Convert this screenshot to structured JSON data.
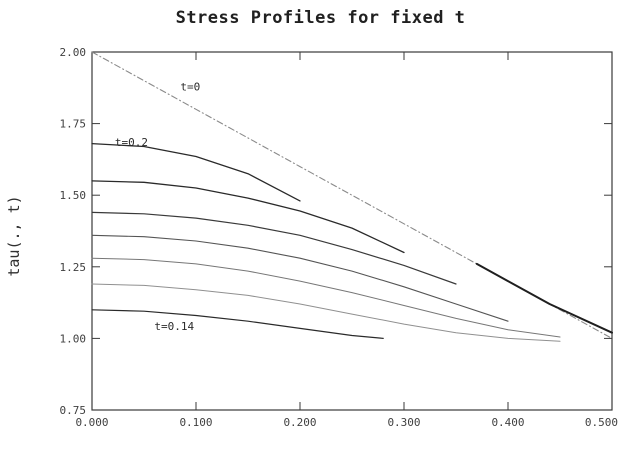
{
  "chart_data": {
    "type": "line",
    "title": "Stress Profiles for fixed t",
    "xlabel": "",
    "ylabel": "tau(., t)",
    "xlim": [
      0.0,
      0.5
    ],
    "ylim": [
      0.75,
      2.0
    ],
    "grid": false,
    "x_ticks": [
      {
        "value": 0.0,
        "label": "0.000"
      },
      {
        "value": 0.1,
        "label": "0.100"
      },
      {
        "value": 0.2,
        "label": "0.200"
      },
      {
        "value": 0.3,
        "label": "0.300"
      },
      {
        "value": 0.4,
        "label": "0.400"
      },
      {
        "value": 0.5,
        "label": "0.500"
      }
    ],
    "y_ticks": [
      {
        "value": 0.75,
        "label": "0.75"
      },
      {
        "value": 1.0,
        "label": "1.00"
      },
      {
        "value": 1.25,
        "label": "1.25"
      },
      {
        "value": 1.5,
        "label": "1.50"
      },
      {
        "value": 1.75,
        "label": "1.75"
      },
      {
        "value": 2.0,
        "label": "2.00"
      }
    ],
    "series": [
      {
        "name": "t=0",
        "color": "#8a8a8a",
        "width": 1.1,
        "dash": "6,3,1,3",
        "x": [
          0.0,
          0.1,
          0.2,
          0.3,
          0.4,
          0.5
        ],
        "y": [
          2.0,
          1.8,
          1.6,
          1.4,
          1.2,
          1.0
        ]
      },
      {
        "name": "t=0.2",
        "color": "#2a2a2a",
        "width": 1.3,
        "dash": "",
        "x": [
          0.0,
          0.05,
          0.1,
          0.15,
          0.2
        ],
        "y": [
          1.68,
          1.67,
          1.635,
          1.575,
          1.48
        ]
      },
      {
        "color": "#2a2a2a",
        "width": 1.3,
        "dash": "",
        "x": [
          0.0,
          0.05,
          0.1,
          0.15,
          0.2,
          0.25,
          0.3
        ],
        "y": [
          1.55,
          1.545,
          1.525,
          1.49,
          1.445,
          1.385,
          1.3
        ]
      },
      {
        "color": "#3a3a3a",
        "width": 1.2,
        "dash": "",
        "x": [
          0.0,
          0.05,
          0.1,
          0.15,
          0.2,
          0.25,
          0.3,
          0.35
        ],
        "y": [
          1.44,
          1.435,
          1.42,
          1.395,
          1.36,
          1.31,
          1.255,
          1.19
        ]
      },
      {
        "color": "#555555",
        "width": 1.1,
        "dash": "",
        "x": [
          0.0,
          0.05,
          0.1,
          0.15,
          0.2,
          0.25,
          0.3,
          0.35,
          0.4
        ],
        "y": [
          1.36,
          1.355,
          1.34,
          1.315,
          1.28,
          1.235,
          1.18,
          1.12,
          1.06
        ]
      },
      {
        "color": "#777777",
        "width": 1.0,
        "dash": "",
        "x": [
          0.0,
          0.05,
          0.1,
          0.15,
          0.2,
          0.25,
          0.3,
          0.35,
          0.4,
          0.45
        ],
        "y": [
          1.28,
          1.275,
          1.26,
          1.235,
          1.2,
          1.16,
          1.115,
          1.07,
          1.03,
          1.005
        ]
      },
      {
        "color": "#909090",
        "width": 1.0,
        "dash": "",
        "x": [
          0.0,
          0.05,
          0.1,
          0.15,
          0.2,
          0.25,
          0.3,
          0.35,
          0.4,
          0.45
        ],
        "y": [
          1.19,
          1.185,
          1.17,
          1.15,
          1.12,
          1.085,
          1.05,
          1.02,
          1.0,
          0.99
        ]
      },
      {
        "name": "t=0.14",
        "color": "#2a2a2a",
        "width": 1.2,
        "dash": "",
        "x": [
          0.0,
          0.05,
          0.1,
          0.15,
          0.2,
          0.25,
          0.28
        ],
        "y": [
          1.1,
          1.095,
          1.08,
          1.06,
          1.035,
          1.01,
          1.0
        ]
      },
      {
        "color": "#1f1f1f",
        "width": 2.0,
        "dash": "",
        "x": [
          0.37,
          0.4,
          0.44,
          0.5
        ],
        "y": [
          1.26,
          1.2,
          1.12,
          1.02
        ]
      }
    ],
    "annotations": [
      {
        "text": "t=0",
        "x": 0.085,
        "y": 1.865
      },
      {
        "text": "t=0.2",
        "x": 0.022,
        "y": 1.672
      },
      {
        "text": "t=0.14",
        "x": 0.06,
        "y": 1.03
      }
    ]
  }
}
